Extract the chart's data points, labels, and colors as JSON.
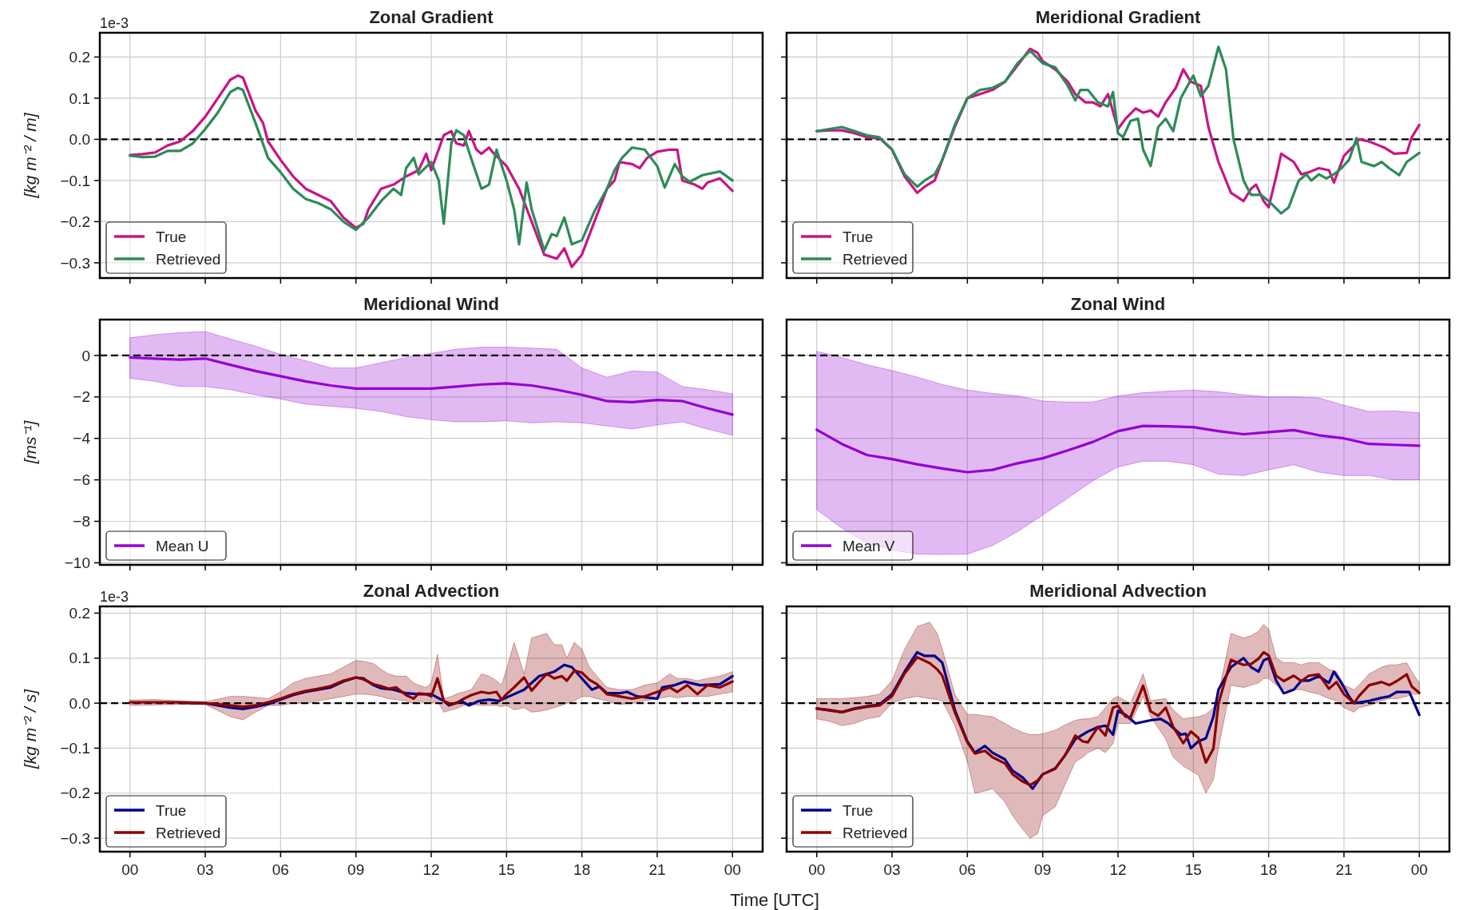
{
  "chart_data": [
    {
      "type": "line",
      "title": "Zonal Gradient",
      "ylabel": "[kg m⁻² / m]",
      "annotations": [
        "1e-3"
      ],
      "xlim": [
        -1.2,
        25.2
      ],
      "xticks": [
        0,
        3,
        6,
        9,
        12,
        15,
        18,
        21,
        24
      ],
      "ylim": [
        -0.337,
        0.259
      ],
      "yticks": [
        {
          "value": -0.3,
          "label": "−0.3"
        },
        {
          "value": -0.2,
          "label": "−0.2"
        },
        {
          "value": -0.1,
          "label": "−0.1"
        },
        {
          "value": 0,
          "label": "0.0"
        },
        {
          "value": 0.1,
          "label": "0.1"
        },
        {
          "value": 0.2,
          "label": "0.2"
        }
      ],
      "tick_labels": "y",
      "grid": true,
      "legend": "bottom left",
      "line_style": "solid",
      "ref_lines": [
        {
          "axis": "y",
          "value": 0,
          "color": "#000000",
          "line_style": "dashed"
        }
      ],
      "series": [
        {
          "name": "True",
          "color": "#c71585",
          "x": [
            0,
            0.5,
            1,
            1.5,
            2,
            2.5,
            3,
            3.5,
            4,
            4.3,
            4.5,
            5,
            5.3,
            5.5,
            6,
            6.5,
            7,
            7.5,
            8,
            8.5,
            9,
            9.3,
            9.5,
            10,
            10.5,
            11,
            11.5,
            11.8,
            12,
            12.5,
            12.8,
            13,
            13.3,
            13.5,
            13.8,
            14,
            14.3,
            14.5,
            15,
            15.5,
            16,
            16.5,
            17,
            17.3,
            17.6,
            18,
            18.5,
            19,
            19.3,
            19.5,
            20,
            20.3,
            20.6,
            21,
            21.5,
            21.8,
            22,
            22.5,
            22.8,
            23,
            23.5,
            24
          ],
          "values": [
            -0.038,
            -0.036,
            -0.032,
            -0.015,
            -0.005,
            0.02,
            0.055,
            0.1,
            0.145,
            0.155,
            0.15,
            0.07,
            0.04,
            -0.005,
            -0.05,
            -0.09,
            -0.12,
            -0.135,
            -0.15,
            -0.19,
            -0.215,
            -0.205,
            -0.17,
            -0.12,
            -0.11,
            -0.09,
            -0.075,
            -0.035,
            -0.075,
            0.01,
            0.02,
            -0.01,
            -0.015,
            0.02,
            -0.025,
            -0.035,
            -0.02,
            -0.035,
            -0.065,
            -0.12,
            -0.2,
            -0.28,
            -0.29,
            -0.265,
            -0.31,
            -0.28,
            -0.2,
            -0.12,
            -0.1,
            -0.055,
            -0.06,
            -0.07,
            -0.045,
            -0.03,
            -0.025,
            -0.025,
            -0.1,
            -0.11,
            -0.12,
            -0.105,
            -0.095,
            -0.125
          ]
        },
        {
          "name": "Retrieved",
          "color": "#2e8b57",
          "x": [
            0,
            0.5,
            1,
            1.5,
            2,
            2.5,
            3,
            3.5,
            4,
            4.3,
            4.5,
            5,
            5.5,
            6,
            6.5,
            7,
            7.5,
            8,
            8.5,
            9,
            9.5,
            10,
            10.5,
            10.8,
            11,
            11.3,
            11.5,
            12,
            12.3,
            12.5,
            12.8,
            13,
            13.3,
            13.5,
            14,
            14.3,
            14.6,
            15,
            15.3,
            15.5,
            15.8,
            16,
            16.5,
            16.8,
            17,
            17.3,
            17.6,
            18,
            18.5,
            19,
            19.3,
            19.6,
            20,
            20.5,
            21,
            21.3,
            21.7,
            22,
            22.3,
            22.8,
            23.5,
            24
          ],
          "values": [
            -0.04,
            -0.043,
            -0.042,
            -0.028,
            -0.028,
            -0.01,
            0.025,
            0.065,
            0.115,
            0.125,
            0.12,
            0.04,
            -0.045,
            -0.08,
            -0.12,
            -0.145,
            -0.155,
            -0.17,
            -0.2,
            -0.22,
            -0.19,
            -0.15,
            -0.12,
            -0.135,
            -0.07,
            -0.045,
            -0.085,
            -0.055,
            -0.1,
            -0.205,
            -0.01,
            0.022,
            0.01,
            -0.03,
            -0.12,
            -0.11,
            -0.025,
            -0.1,
            -0.17,
            -0.255,
            -0.105,
            -0.17,
            -0.27,
            -0.23,
            -0.235,
            -0.19,
            -0.255,
            -0.245,
            -0.175,
            -0.12,
            -0.075,
            -0.045,
            -0.02,
            -0.025,
            -0.065,
            -0.117,
            -0.06,
            -0.09,
            -0.103,
            -0.087,
            -0.078,
            -0.1
          ]
        }
      ]
    },
    {
      "type": "line",
      "title": "Meridional Gradient",
      "xlim": [
        -1.2,
        25.2
      ],
      "xticks": [
        0,
        3,
        6,
        9,
        12,
        15,
        18,
        21,
        24
      ],
      "ylim": [
        -0.337,
        0.259
      ],
      "yticks": [
        -0.3,
        -0.2,
        -0.1,
        0,
        0.1,
        0.2
      ],
      "tick_labels": false,
      "grid": true,
      "legend": "bottom left",
      "line_style": "solid",
      "ref_lines": [
        {
          "axis": "y",
          "value": 0,
          "color": "#000000",
          "line_style": "dashed"
        }
      ],
      "series": [
        {
          "name": "True",
          "color": "#c71585",
          "x": [
            0,
            0.5,
            1,
            1.5,
            2,
            2.5,
            3,
            3.5,
            4,
            4.3,
            4.7,
            5,
            5.5,
            6,
            6.5,
            7,
            7.5,
            8,
            8.5,
            8.8,
            9,
            9.5,
            10,
            10.3,
            10.7,
            11,
            11.3,
            11.6,
            12,
            12.3,
            12.7,
            13,
            13.3,
            13.6,
            13.9,
            14.3,
            14.6,
            14.9,
            15.3,
            15.6,
            16,
            16.5,
            17,
            17.3,
            17.5,
            17.8,
            18,
            18.3,
            18.5,
            19,
            19.3,
            19.6,
            20,
            20.4,
            20.6,
            21,
            21.4,
            21.6,
            22,
            22.4,
            22.6,
            23,
            23.5,
            23.7,
            24
          ],
          "values": [
            0.02,
            0.022,
            0.022,
            0.015,
            0.005,
            0.003,
            -0.025,
            -0.09,
            -0.13,
            -0.115,
            -0.1,
            -0.05,
            0.03,
            0.1,
            0.11,
            0.12,
            0.14,
            0.18,
            0.22,
            0.21,
            0.19,
            0.17,
            0.14,
            0.11,
            0.09,
            0.09,
            0.08,
            0.11,
            0.025,
            0.05,
            0.075,
            0.065,
            0.07,
            0.055,
            0.09,
            0.125,
            0.17,
            0.14,
            0.13,
            0.03,
            -0.055,
            -0.13,
            -0.15,
            -0.12,
            -0.11,
            -0.15,
            -0.165,
            -0.09,
            -0.035,
            -0.055,
            -0.085,
            -0.08,
            -0.07,
            -0.075,
            -0.105,
            -0.04,
            -0.015,
            0,
            -0.005,
            -0.015,
            -0.02,
            -0.035,
            -0.033,
            0.005,
            0.035
          ]
        },
        {
          "name": "Retrieved",
          "color": "#2e8b57",
          "x": [
            0,
            0.5,
            1,
            1.5,
            2,
            2.5,
            3,
            3.5,
            4,
            4.3,
            4.7,
            5,
            5.5,
            6,
            6.5,
            7,
            7.5,
            8,
            8.5,
            9,
            9.5,
            10,
            10.3,
            10.5,
            10.8,
            11.2,
            11.6,
            11.8,
            12,
            12.2,
            12.5,
            12.8,
            13,
            13.3,
            13.6,
            13.9,
            14.2,
            14.5,
            15,
            15.3,
            15.6,
            16,
            16.3,
            16.6,
            17,
            17.3,
            17.7,
            18,
            18.5,
            18.8,
            19.2,
            19.5,
            19.7,
            20,
            20.3,
            20.6,
            20.9,
            21.2,
            21.5,
            21.7,
            22.2,
            22.5,
            22.8,
            23.2,
            23.5,
            24
          ],
          "values": [
            0.02,
            0.025,
            0.03,
            0.02,
            0.01,
            0.005,
            -0.025,
            -0.085,
            -0.115,
            -0.1,
            -0.085,
            -0.05,
            0.035,
            0.1,
            0.12,
            0.125,
            0.14,
            0.185,
            0.215,
            0.185,
            0.175,
            0.13,
            0.095,
            0.12,
            0.12,
            0.09,
            0.08,
            0.115,
            0.015,
            0.005,
            0.045,
            0.05,
            -0.025,
            -0.065,
            0.03,
            0.05,
            0.02,
            0.1,
            0.155,
            0.105,
            0.13,
            0.225,
            0.17,
            0,
            -0.1,
            -0.135,
            -0.135,
            -0.15,
            -0.18,
            -0.165,
            -0.1,
            -0.085,
            -0.1,
            -0.085,
            -0.095,
            -0.085,
            -0.07,
            -0.05,
            0.003,
            -0.055,
            -0.065,
            -0.055,
            -0.07,
            -0.087,
            -0.055,
            -0.033
          ]
        }
      ]
    },
    {
      "type": "line",
      "title": "Meridional Wind",
      "ylabel": "[ms⁻¹]",
      "xlim": [
        -1.2,
        25.2
      ],
      "xticks": [
        0,
        3,
        6,
        9,
        12,
        15,
        18,
        21,
        24
      ],
      "ylim": [
        -10.1,
        1.73
      ],
      "yticks": [
        {
          "value": -10,
          "label": "−10"
        },
        {
          "value": -8,
          "label": "−8"
        },
        {
          "value": -6,
          "label": "−6"
        },
        {
          "value": -4,
          "label": "−4"
        },
        {
          "value": -2,
          "label": "−2"
        },
        0
      ],
      "tick_labels": "y",
      "grid": true,
      "legend": "bottom left",
      "line_style": "solid",
      "ref_lines": [
        {
          "axis": "y",
          "value": 0,
          "color": "#000000",
          "line_style": "dashed"
        }
      ],
      "x": [
        0,
        1,
        2,
        3,
        4,
        5,
        6,
        7,
        8,
        9,
        10,
        11,
        12,
        13,
        14,
        15,
        16,
        17,
        18,
        19,
        20,
        21,
        22,
        23,
        24
      ],
      "series": [
        {
          "name": "Mean U",
          "color": "#9400d3",
          "values": [
            -0.1,
            -0.15,
            -0.2,
            -0.15,
            -0.45,
            -0.75,
            -1.0,
            -1.25,
            -1.45,
            -1.6,
            -1.6,
            -1.6,
            -1.6,
            -1.5,
            -1.4,
            -1.35,
            -1.45,
            -1.65,
            -1.9,
            -2.2,
            -2.25,
            -2.15,
            -2.2,
            -2.55,
            -2.85
          ],
          "upper": [
            0.85,
            1.0,
            1.1,
            1.15,
            0.8,
            0.45,
            0.05,
            -0.25,
            -0.6,
            -0.6,
            -0.35,
            -0.1,
            0.1,
            0.3,
            0.4,
            0.4,
            0.35,
            0.3,
            -0.6,
            -1.05,
            -0.75,
            -0.8,
            -1.5,
            -1.65,
            -1.85
          ],
          "lower": [
            -1.1,
            -1.25,
            -1.5,
            -1.5,
            -1.65,
            -1.9,
            -2.1,
            -2.35,
            -2.45,
            -2.55,
            -2.7,
            -2.95,
            -3.1,
            -3.2,
            -3.2,
            -3.15,
            -3.25,
            -3.2,
            -3.25,
            -3.4,
            -3.55,
            -3.35,
            -3.2,
            -3.55,
            -3.85
          ]
        }
      ]
    },
    {
      "type": "line",
      "title": "Zonal Wind",
      "xlim": [
        -1.2,
        25.2
      ],
      "xticks": [
        0,
        3,
        6,
        9,
        12,
        15,
        18,
        21,
        24
      ],
      "ylim": [
        -10.1,
        1.73
      ],
      "yticks": [
        -10,
        -8,
        -6,
        -4,
        -2,
        0
      ],
      "tick_labels": false,
      "grid": true,
      "legend": "bottom left",
      "line_style": "solid",
      "ref_lines": [
        {
          "axis": "y",
          "value": 0,
          "color": "#000000",
          "line_style": "dashed"
        }
      ],
      "x": [
        0,
        1,
        2,
        3,
        4,
        5,
        6,
        7,
        8,
        9,
        10,
        11,
        12,
        13,
        14,
        15,
        16,
        17,
        18,
        19,
        20,
        21,
        22,
        23,
        24
      ],
      "series": [
        {
          "name": "Mean V",
          "color": "#9400d3",
          "values": [
            -3.58,
            -4.27,
            -4.8,
            -5.0,
            -5.25,
            -5.45,
            -5.63,
            -5.52,
            -5.2,
            -4.96,
            -4.58,
            -4.17,
            -3.65,
            -3.4,
            -3.42,
            -3.46,
            -3.65,
            -3.8,
            -3.7,
            -3.6,
            -3.85,
            -4.0,
            -4.27,
            -4.31,
            -4.35
          ],
          "upper": [
            0.2,
            -0.1,
            -0.45,
            -0.73,
            -1.04,
            -1.4,
            -1.67,
            -1.83,
            -1.95,
            -2.2,
            -2.25,
            -2.25,
            -1.95,
            -1.8,
            -1.72,
            -1.67,
            -1.75,
            -1.9,
            -2.0,
            -2.0,
            -2.05,
            -2.4,
            -2.7,
            -2.67,
            -2.77
          ],
          "lower": [
            -7.44,
            -8.33,
            -9.06,
            -9.38,
            -9.58,
            -9.6,
            -9.58,
            -9.17,
            -8.5,
            -7.7,
            -6.88,
            -6.04,
            -5.38,
            -5.1,
            -5.1,
            -5.27,
            -5.73,
            -5.79,
            -5.52,
            -5.27,
            -5.63,
            -5.79,
            -5.79,
            -6.0,
            -6.0
          ]
        }
      ]
    },
    {
      "type": "line",
      "title": "Zonal Advection",
      "ylabel": "[kg m⁻² / s]",
      "xlabel": "Time [UTC]",
      "annotations": [
        "1e-3"
      ],
      "xlim": [
        -1.2,
        25.2
      ],
      "xticks": [
        {
          "value": 0,
          "label": "00"
        },
        {
          "value": 3,
          "label": "03"
        },
        {
          "value": 6,
          "label": "06"
        },
        {
          "value": 9,
          "label": "09"
        },
        {
          "value": 12,
          "label": "12"
        },
        {
          "value": 15,
          "label": "15"
        },
        {
          "value": 18,
          "label": "18"
        },
        {
          "value": 21,
          "label": "21"
        },
        {
          "value": 24,
          "label": "00"
        }
      ],
      "ylim": [
        -0.33,
        0.215
      ],
      "yticks": [
        {
          "value": -0.3,
          "label": "−0.3"
        },
        {
          "value": -0.2,
          "label": "−0.2"
        },
        {
          "value": -0.1,
          "label": "−0.1"
        },
        {
          "value": 0,
          "label": "0.0"
        },
        {
          "value": 0.1,
          "label": "0.1"
        },
        {
          "value": 0.2,
          "label": "0.2"
        }
      ],
      "grid": true,
      "legend": "bottom left",
      "line_style": "solid",
      "ref_lines": [
        {
          "axis": "y",
          "value": 0,
          "color": "#000000",
          "line_style": "dashed"
        }
      ],
      "series": [
        {
          "name": "True",
          "color": "#00008b",
          "x": [
            2,
            3,
            3.5,
            4,
            4.5,
            5,
            5.5,
            6,
            6.5,
            7,
            7.5,
            8,
            8.5,
            9,
            9.3,
            9.7,
            10,
            10.5,
            11,
            11.5,
            12,
            12.5,
            12.7,
            13.2,
            13.5,
            13.9,
            14.3,
            14.7,
            15.1,
            15.7,
            16.3,
            16.9,
            17.3,
            17.6,
            18,
            18.4,
            18.7,
            19,
            19.5,
            19.8,
            20.2,
            21,
            21.2,
            21.7,
            22.1,
            22.7,
            23.5,
            24
          ],
          "values": [
            0.001,
            0,
            -0.005,
            -0.01,
            -0.013,
            -0.008,
            -0.002,
            0.008,
            0.018,
            0.025,
            0.03,
            0.035,
            0.048,
            0.057,
            0.055,
            0.04,
            0.033,
            0.03,
            0.022,
            0.02,
            0.02,
            0.005,
            -0.005,
            0.005,
            -0.005,
            0.005,
            0.008,
            0.005,
            0.015,
            0.03,
            0.06,
            0.07,
            0.085,
            0.08,
            0.055,
            0.03,
            0.037,
            0.022,
            0.022,
            0.025,
            0.015,
            0.01,
            0.035,
            0.04,
            0.048,
            0.04,
            0.042,
            0.06
          ]
        },
        {
          "name": "Retrieved",
          "color": "#8b0000",
          "x": [
            0,
            1,
            2,
            3,
            4,
            4.5,
            5,
            5.5,
            6,
            6.5,
            7,
            7.5,
            8,
            8.5,
            9,
            9.3,
            9.7,
            10,
            10.3,
            10.6,
            11,
            11.3,
            11.5,
            11.8,
            12,
            12.25,
            12.5,
            12.8,
            13,
            13.3,
            13.6,
            14,
            14.3,
            14.6,
            14.8,
            15,
            15.3,
            15.7,
            16,
            16.3,
            16.6,
            16.9,
            17.2,
            17.4,
            17.7,
            18,
            18.3,
            18.6,
            19,
            19.5,
            20,
            20.5,
            21,
            21.5,
            21.8,
            22.2,
            22.6,
            23,
            23.5,
            24
          ],
          "values": [
            0.002,
            0.002,
            0.002,
            0,
            -0.005,
            -0.008,
            -0.005,
            0.002,
            0.01,
            0.02,
            0.027,
            0.032,
            0.038,
            0.05,
            0.057,
            0.053,
            0.042,
            0.038,
            0.032,
            0.035,
            0.018,
            0.01,
            0.022,
            0.02,
            0.015,
            0.055,
            0.005,
            -0.003,
            0,
            0.01,
            0.018,
            0.025,
            0.022,
            0.025,
            0.008,
            0.02,
            0.035,
            0.057,
            0.028,
            0.047,
            0.065,
            0.055,
            0.06,
            0.05,
            0.072,
            0.068,
            0.052,
            0.042,
            0.02,
            0.015,
            0.01,
            0.015,
            0.025,
            0.035,
            0.025,
            0.04,
            0.02,
            0.04,
            0.035,
            0.048
          ],
          "upper": [
            0.007,
            0.008,
            0.005,
            0.003,
            0.015,
            0.015,
            0.013,
            0.01,
            0.025,
            0.045,
            0.055,
            0.06,
            0.065,
            0.08,
            0.095,
            0.093,
            0.088,
            0.075,
            0.065,
            0.06,
            0.06,
            0.045,
            0.04,
            0.035,
            0.045,
            0.108,
            0.01,
            0.015,
            0.02,
            0.025,
            0.03,
            0.065,
            0.06,
            0.05,
            0.04,
            0.075,
            0.135,
            0.065,
            0.145,
            0.15,
            0.155,
            0.13,
            0.13,
            0.1,
            0.135,
            0.12,
            0.08,
            0.06,
            0.035,
            0.03,
            0.03,
            0.04,
            0.045,
            0.065,
            0.055,
            0.055,
            0.05,
            0.055,
            0.06,
            0.07
          ],
          "lower": [
            -0.005,
            -0.004,
            -0.003,
            -0.003,
            -0.03,
            -0.037,
            -0.02,
            -0.005,
            -0.005,
            0,
            0,
            0.005,
            0.01,
            0.015,
            0.02,
            0.02,
            0.018,
            0.015,
            0.01,
            0.008,
            0.005,
            0,
            0.005,
            0,
            0,
            0.005,
            -0.02,
            -0.015,
            -0.012,
            -0.005,
            -0.003,
            -0.005,
            -0.005,
            -0.005,
            -0.008,
            -0.005,
            -0.015,
            -0.01,
            -0.02,
            -0.018,
            -0.015,
            -0.01,
            -0.005,
            0,
            0.005,
            0.015,
            0.015,
            0.01,
            0.005,
            -0.003,
            0,
            0.005,
            0.01,
            0.015,
            0.012,
            0.015,
            0.015,
            0.015,
            0.02,
            0.025
          ]
        }
      ]
    },
    {
      "type": "line",
      "title": "Meridional Advection",
      "xlim": [
        -1.2,
        25.2
      ],
      "xticks": [
        {
          "value": 0,
          "label": "00"
        },
        {
          "value": 3,
          "label": "03"
        },
        {
          "value": 6,
          "label": "06"
        },
        {
          "value": 9,
          "label": "09"
        },
        {
          "value": 12,
          "label": "12"
        },
        {
          "value": 15,
          "label": "15"
        },
        {
          "value": 18,
          "label": "18"
        },
        {
          "value": 21,
          "label": "21"
        },
        {
          "value": 24,
          "label": "00"
        }
      ],
      "ylim": [
        -0.33,
        0.215
      ],
      "yticks": [
        -0.3,
        -0.2,
        -0.1,
        0,
        0.1,
        0.2
      ],
      "tick_labels": "x",
      "grid": true,
      "legend": "bottom left",
      "line_style": "solid",
      "ref_lines": [
        {
          "axis": "y",
          "value": 0,
          "color": "#000000",
          "line_style": "dashed"
        }
      ],
      "series": [
        {
          "name": "True",
          "color": "#00008b",
          "x": [
            0,
            0.5,
            1,
            1.5,
            2,
            2.5,
            3,
            3.5,
            4,
            4.3,
            4.7,
            5,
            5.5,
            6,
            6.3,
            6.7,
            7,
            7.5,
            7.8,
            8.2,
            8.6,
            9,
            9.5,
            9.9,
            10.3,
            10.8,
            11.2,
            11.5,
            11.8,
            12,
            12.3,
            12.7,
            13.3,
            13.7,
            14,
            14.5,
            14.7,
            14.9,
            15.2,
            15.5,
            15.8,
            16,
            16.5,
            17,
            17.3,
            17.6,
            17.8,
            18,
            18.3,
            18.6,
            19,
            19.3,
            19.6,
            20,
            20.4,
            20.6,
            20.9,
            21.2,
            21.4,
            22,
            22.5,
            22.8,
            23.1,
            23.6,
            23.8,
            24
          ],
          "values": [
            -0.012,
            -0.016,
            -0.02,
            -0.012,
            -0.007,
            -0.003,
            0.02,
            0.07,
            0.113,
            0.105,
            0.105,
            0.09,
            -0.015,
            -0.085,
            -0.11,
            -0.095,
            -0.11,
            -0.125,
            -0.15,
            -0.165,
            -0.19,
            -0.158,
            -0.145,
            -0.115,
            -0.08,
            -0.063,
            -0.053,
            -0.05,
            -0.07,
            -0.017,
            -0.026,
            -0.045,
            -0.038,
            -0.035,
            -0.045,
            -0.07,
            -0.068,
            -0.1,
            -0.085,
            -0.078,
            -0.03,
            0.03,
            0.08,
            0.1,
            0.08,
            0.07,
            0.095,
            0.1,
            0.05,
            0.022,
            0.03,
            0.05,
            0.05,
            0.06,
            0.045,
            0.07,
            0.045,
            0.015,
            0,
            0.005,
            0.012,
            0.015,
            0.025,
            0.025,
            0,
            -0.026
          ]
        },
        {
          "name": "Retrieved",
          "color": "#8b0000",
          "x": [
            0,
            0.5,
            1,
            1.5,
            2,
            2.5,
            3,
            3.5,
            4,
            4.5,
            4.8,
            5,
            5.5,
            6,
            6.3,
            6.7,
            7,
            7.5,
            7.8,
            8.2,
            8.5,
            8.8,
            9,
            9.5,
            9.9,
            10.3,
            10.6,
            10.8,
            11.2,
            11.5,
            11.8,
            12,
            12.3,
            12.5,
            13,
            13.3,
            13.6,
            13.9,
            14.2,
            14.6,
            14.9,
            15.2,
            15.5,
            15.8,
            16,
            16.5,
            17,
            17.3,
            17.6,
            17.8,
            18,
            18.3,
            18.6,
            19,
            19.3,
            19.6,
            20,
            20.4,
            20.7,
            21,
            21.4,
            21.6,
            22,
            22.5,
            22.8,
            23.1,
            23.5,
            23.7,
            24
          ],
          "values": [
            -0.012,
            -0.015,
            -0.02,
            -0.013,
            -0.008,
            -0.005,
            0.016,
            0.066,
            0.102,
            0.089,
            0.075,
            0.061,
            -0.02,
            -0.087,
            -0.112,
            -0.106,
            -0.12,
            -0.134,
            -0.158,
            -0.174,
            -0.182,
            -0.172,
            -0.158,
            -0.146,
            -0.115,
            -0.072,
            -0.085,
            -0.087,
            -0.053,
            -0.072,
            -0.01,
            -0.006,
            -0.03,
            -0.031,
            0.039,
            -0.018,
            -0.028,
            -0.01,
            -0.053,
            -0.089,
            -0.063,
            -0.077,
            -0.132,
            -0.101,
            -0.001,
            0.096,
            0.085,
            0.087,
            0.099,
            0.113,
            0.106,
            0.061,
            0.049,
            0.061,
            0.049,
            0.061,
            0.064,
            0.032,
            0.047,
            0.02,
            0,
            0.016,
            0.04,
            0.047,
            0.04,
            0.049,
            0.064,
            0.037,
            0.023
          ],
          "upper": [
            0.01,
            0.01,
            0.01,
            0.012,
            0.015,
            0.02,
            0.05,
            0.12,
            0.17,
            0.18,
            0.155,
            0.12,
            0.02,
            -0.025,
            -0.025,
            -0.028,
            -0.03,
            -0.045,
            -0.055,
            -0.065,
            -0.07,
            -0.07,
            -0.068,
            -0.06,
            -0.048,
            -0.038,
            -0.035,
            -0.035,
            -0.03,
            -0.01,
            0.01,
            0.015,
            0.005,
            0,
            0.065,
            0.005,
            0.008,
            0.01,
            -0.015,
            -0.035,
            -0.032,
            -0.03,
            -0.025,
            -0.01,
            0.02,
            0.155,
            0.145,
            0.15,
            0.16,
            0.175,
            0.165,
            0.1,
            0.09,
            0.09,
            0.085,
            0.09,
            0.09,
            0.075,
            0.07,
            0.04,
            0.03,
            0.04,
            0.065,
            0.08,
            0.085,
            0.085,
            0.09,
            0.07,
            0.045
          ],
          "lower": [
            -0.035,
            -0.04,
            -0.05,
            -0.045,
            -0.035,
            -0.03,
            0,
            0.01,
            0.015,
            0.01,
            0.008,
            0.005,
            -0.05,
            -0.13,
            -0.2,
            -0.195,
            -0.19,
            -0.22,
            -0.25,
            -0.28,
            -0.3,
            -0.29,
            -0.25,
            -0.23,
            -0.18,
            -0.13,
            -0.12,
            -0.11,
            -0.1,
            -0.11,
            -0.09,
            -0.045,
            -0.045,
            -0.045,
            0.015,
            -0.03,
            -0.055,
            -0.08,
            -0.12,
            -0.14,
            -0.15,
            -0.16,
            -0.2,
            -0.17,
            -0.1,
            0.04,
            0.035,
            0.04,
            0.045,
            0.055,
            0.055,
            0.04,
            0.03,
            0.03,
            0.03,
            0.025,
            0.02,
            0.01,
            0.005,
            -0.01,
            -0.02,
            -0.01,
            -0.005,
            0.005,
            0.01,
            0.01,
            0.015,
            0.02,
            0.02
          ]
        }
      ]
    }
  ]
}
